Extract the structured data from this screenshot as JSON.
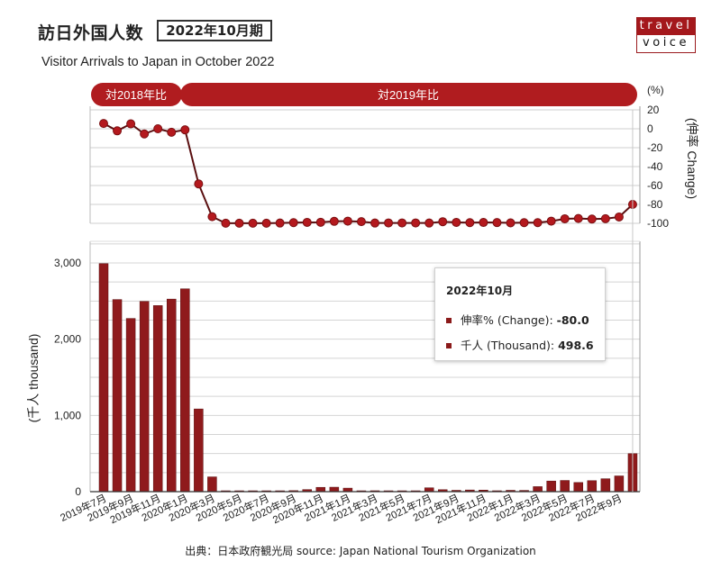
{
  "header": {
    "title_jp": "訪日外国人数",
    "period": "2022年10月期",
    "title_en": "Visitor Arrivals to Japan in October 2022"
  },
  "logo": {
    "top": "travel",
    "bottom": "voice",
    "color": "#a4181c"
  },
  "banners": {
    "left": "対2018年比",
    "right": "対2019年比"
  },
  "tooltip": {
    "title": "2022年10月",
    "change_label": "伸率% (Change): ",
    "change_value": "-80.0",
    "thousand_label": "千人 (Thousand): ",
    "thousand_value": "498.6"
  },
  "source": "出典：日本政府観光局  source: Japan National Tourism Organization",
  "colors": {
    "bar": "#8f1a1c",
    "line_marker": "#b4191e",
    "line": "#5a0f10",
    "banner": "#b01c1f"
  },
  "chart_data": [
    {
      "type": "line",
      "title": "伸率 (Change)",
      "ylabel": "(伸率 Change)",
      "y_unit": "(%)",
      "ylim": [
        -100,
        20
      ],
      "yticks": [
        20,
        0,
        -20,
        -40,
        -60,
        -80,
        -100
      ],
      "grid": true,
      "axis_position": "right",
      "x": [
        "2019年7月",
        "2019年8月",
        "2019年9月",
        "2019年10月",
        "2019年11月",
        "2019年12月",
        "2020年1月",
        "2020年2月",
        "2020年3月",
        "2020年4月",
        "2020年5月",
        "2020年6月",
        "2020年7月",
        "2020年8月",
        "2020年9月",
        "2020年10月",
        "2020年11月",
        "2020年12月",
        "2021年1月",
        "2021年2月",
        "2021年3月",
        "2021年4月",
        "2021年5月",
        "2021年6月",
        "2021年7月",
        "2021年8月",
        "2021年9月",
        "2021年10月",
        "2021年11月",
        "2021年12月",
        "2022年1月",
        "2022年2月",
        "2022年3月",
        "2022年4月",
        "2022年5月",
        "2022年6月",
        "2022年7月",
        "2022年8月",
        "2022年9月",
        "2022年10月"
      ],
      "series": [
        {
          "name": "伸率% (Change)",
          "values": [
            5.6,
            -2.2,
            5.2,
            -5.5,
            0.0,
            -3.7,
            -1.1,
            -58.3,
            -93.0,
            -99.9,
            -99.9,
            -99.9,
            -99.9,
            -99.7,
            -99.3,
            -99.0,
            -98.9,
            -97.9,
            -97.7,
            -98.2,
            -99.7,
            -99.6,
            -99.6,
            -99.6,
            -99.7,
            -98.3,
            -99.0,
            -99.3,
            -99.1,
            -99.2,
            -99.5,
            -99.3,
            -99.3,
            -97.7,
            -95.2,
            -94.9,
            -95.5,
            -95.1,
            -93.3,
            -80.0
          ]
        }
      ],
      "annotations": [
        {
          "label": "対2018年比",
          "range": [
            "2019年7月",
            "2020年1月"
          ]
        },
        {
          "label": "対2019年比",
          "range": [
            "2020年2月",
            "2022年10月"
          ]
        }
      ]
    },
    {
      "type": "bar",
      "title": "千人 (Thousand)",
      "ylabel": "(千人 thousand)",
      "ylim": [
        0,
        3250
      ],
      "yticks": [
        0,
        1000,
        2000,
        3000
      ],
      "ytick_labels": [
        "0",
        "1,000",
        "2,000",
        "3,000"
      ],
      "grid": true,
      "xtick_labels": [
        "2019年7月",
        "2019年9月",
        "2019年11月",
        "2020年1月",
        "2020年3月",
        "2020年5月",
        "2020年7月",
        "2020年9月",
        "2020年11月",
        "2021年1月",
        "2021年3月",
        "2021年5月",
        "2021年7月",
        "2021年9月",
        "2021年11月",
        "2022年1月",
        "2022年3月",
        "2022年5月",
        "2022年7月",
        "2022年9月"
      ],
      "categories": [
        "2019年7月",
        "2019年8月",
        "2019年9月",
        "2019年10月",
        "2019年11月",
        "2019年12月",
        "2020年1月",
        "2020年2月",
        "2020年3月",
        "2020年4月",
        "2020年5月",
        "2020年6月",
        "2020年7月",
        "2020年8月",
        "2020年9月",
        "2020年10月",
        "2020年11月",
        "2020年12月",
        "2021年1月",
        "2021年2月",
        "2021年3月",
        "2021年4月",
        "2021年5月",
        "2021年6月",
        "2021年7月",
        "2021年8月",
        "2021年9月",
        "2021年10月",
        "2021年11月",
        "2021年12月",
        "2022年1月",
        "2022年2月",
        "2022年3月",
        "2022年4月",
        "2022年5月",
        "2022年6月",
        "2022年7月",
        "2022年8月",
        "2022年9月",
        "2022年10月"
      ],
      "values": [
        2991,
        2520,
        2272,
        2496,
        2441,
        2526,
        2661,
        1085,
        194,
        2.9,
        1.7,
        2.6,
        3.8,
        8.7,
        13.7,
        27.4,
        56.7,
        58.7,
        46.5,
        7.4,
        12.3,
        10.9,
        10.0,
        9.3,
        51.1,
        25.9,
        17.7,
        22.1,
        20.7,
        12.1,
        17.8,
        16.7,
        66.1,
        139.5,
        147.0,
        120.4,
        144.5,
        169.9,
        206.5,
        498.6
      ],
      "highlighted": "2022年10月"
    }
  ]
}
